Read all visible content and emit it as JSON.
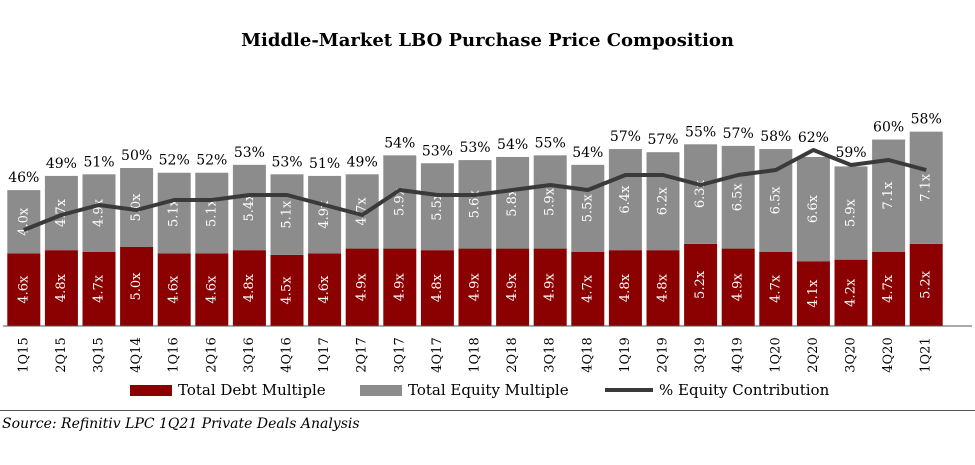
{
  "chart_data": {
    "type": "bar",
    "title": "Middle-Market LBO Purchase Price Composition",
    "categories": [
      "1Q15",
      "2Q15",
      "3Q15",
      "4Q14",
      "1Q16",
      "2Q16",
      "3Q16",
      "4Q16",
      "1Q17",
      "2Q17",
      "3Q17",
      "4Q17",
      "1Q18",
      "2Q18",
      "3Q18",
      "4Q18",
      "1Q19",
      "2Q19",
      "3Q19",
      "4Q19",
      "1Q20",
      "2Q20",
      "3Q20",
      "4Q20",
      "1Q21"
    ],
    "series": [
      {
        "name": "Total Debt Multiple",
        "values": [
          4.6,
          4.8,
          4.7,
          5.0,
          4.6,
          4.6,
          4.8,
          4.5,
          4.6,
          4.9,
          4.9,
          4.8,
          4.9,
          4.9,
          4.9,
          4.7,
          4.8,
          4.8,
          5.2,
          4.9,
          4.7,
          4.1,
          4.2,
          4.7,
          5.2
        ],
        "labels": [
          "4.6x",
          "4.8x",
          "4.7x",
          "5.0x",
          "4.6x",
          "4.6x",
          "4.8x",
          "4.5x",
          "4.6x",
          "4.9x",
          "4.9x",
          "4.8x",
          "4.9x",
          "4.9x",
          "4.9x",
          "4.7x",
          "4.8x",
          "4.8x",
          "5.2x",
          "4.9x",
          "4.7x",
          "4.1x",
          "4.2x",
          "4.7x",
          "5.2x"
        ],
        "color": "#8b0000"
      },
      {
        "name": "Total Equity Multiple",
        "values": [
          4.0,
          4.7,
          4.9,
          5.0,
          5.1,
          5.1,
          5.4,
          5.1,
          4.9,
          4.7,
          5.9,
          5.5,
          5.6,
          5.8,
          5.9,
          5.5,
          6.4,
          6.2,
          6.3,
          6.5,
          6.5,
          6.6,
          5.9,
          7.1,
          7.1
        ],
        "labels": [
          "4.0x",
          "4.7x",
          "4.9x",
          "5.0x",
          "5.1x",
          "5.1x",
          "5.4x",
          "5.1x",
          "4.9x",
          "4.7x",
          "5.9x",
          "5.5x",
          "5.6x",
          "5.8x",
          "5.9x",
          "5.5x",
          "6.4x",
          "6.2x",
          "6.3x",
          "6.5x",
          "6.5x",
          "6.6x",
          "5.9x",
          "7.1x",
          "7.1x"
        ],
        "color": "#8c8c8c"
      },
      {
        "name": "% Equity Contribution",
        "type": "line",
        "values": [
          46,
          49,
          51,
          50,
          52,
          52,
          53,
          53,
          51,
          49,
          54,
          53,
          53,
          54,
          55,
          54,
          57,
          57,
          55,
          57,
          58,
          62,
          59,
          60,
          58
        ],
        "labels": [
          "46%",
          "49%",
          "51%",
          "50%",
          "52%",
          "52%",
          "53%",
          "53%",
          "51%",
          "49%",
          "54%",
          "53%",
          "53%",
          "54%",
          "55%",
          "54%",
          "57%",
          "57%",
          "55%",
          "57%",
          "58%",
          "62%",
          "59%",
          "60%",
          "58%"
        ],
        "color": "#3a3a3a"
      }
    ],
    "ylim_bars": [
      0,
      13.2
    ],
    "ylim_line": [
      28,
      72
    ],
    "grid": false,
    "legend_position": "bottom"
  },
  "source": "Source: Refinitiv LPC 1Q21 Private Deals Analysis"
}
